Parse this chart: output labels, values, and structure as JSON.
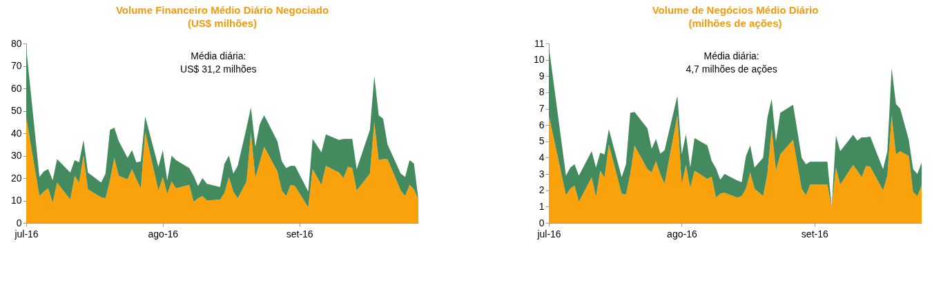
{
  "chart_data": [
    {
      "type": "area",
      "stacked": true,
      "title": "Volume Financeiro Médio Diário Negociado",
      "subtitle": "(US$ milhões)",
      "annotations": [
        "Média diária:",
        "US$ 31,2 milhões"
      ],
      "x": [
        "2016-07-01",
        "2016-07-04",
        "2016-07-05",
        "2016-07-06",
        "2016-07-07",
        "2016-07-08",
        "2016-07-11",
        "2016-07-12",
        "2016-07-13",
        "2016-07-14",
        "2016-07-15",
        "2016-07-18",
        "2016-07-19",
        "2016-07-20",
        "2016-07-21",
        "2016-07-22",
        "2016-07-24",
        "2016-07-25",
        "2016-07-26",
        "2016-07-27",
        "2016-07-28",
        "2016-07-31",
        "2016-08-01",
        "2016-08-02",
        "2016-08-03",
        "2016-08-04",
        "2016-08-07",
        "2016-08-08",
        "2016-08-09",
        "2016-08-10",
        "2016-08-11",
        "2016-08-14",
        "2016-08-15",
        "2016-08-16",
        "2016-08-17",
        "2016-08-18",
        "2016-08-20",
        "2016-08-21",
        "2016-08-22",
        "2016-08-23",
        "2016-08-24",
        "2016-08-27",
        "2016-08-28",
        "2016-08-29",
        "2016-08-30",
        "2016-08-31",
        "2016-09-03",
        "2016-09-04",
        "2016-09-06",
        "2016-09-07",
        "2016-09-10",
        "2016-09-11",
        "2016-09-12",
        "2016-09-13",
        "2016-09-14",
        "2016-09-17",
        "2016-09-18",
        "2016-09-19",
        "2016-09-20",
        "2016-09-21",
        "2016-09-24",
        "2016-09-25",
        "2016-09-26",
        "2016-09-27",
        "2016-09-28"
      ],
      "series": [
        {
          "color": "#f9a20b",
          "values": [
            47,
            12,
            14,
            15.5,
            9,
            18,
            10.5,
            21,
            18,
            30,
            15,
            11.5,
            11,
            19,
            29,
            21,
            19.5,
            24,
            19.5,
            15.5,
            40.5,
            14.5,
            20.5,
            13,
            18.5,
            15.5,
            17,
            9.5,
            11,
            12,
            10,
            10.5,
            13.5,
            20.5,
            14,
            11,
            18.5,
            40.5,
            20,
            27,
            34,
            23,
            14.5,
            12,
            17,
            16.5,
            7,
            24,
            17,
            25.5,
            22.5,
            20,
            25,
            24.5,
            14.5,
            22,
            45,
            28,
            28.5,
            28.5,
            14.5,
            12,
            17,
            15,
            10.5
          ]
        },
        {
          "color": "#438a5e",
          "values": [
            31,
            8.5,
            9,
            8.5,
            10,
            10.5,
            12,
            7,
            9,
            7,
            7.5,
            6.5,
            11,
            22.5,
            13.5,
            15.5,
            9.5,
            8.5,
            7.5,
            12,
            7,
            10.5,
            12,
            6,
            11.5,
            12.5,
            7.5,
            11.5,
            5.5,
            8,
            7.5,
            5.5,
            13,
            9.5,
            8,
            14.5,
            24,
            11,
            14,
            17,
            14,
            13.5,
            13,
            12.5,
            8.5,
            9,
            7,
            13.5,
            14.5,
            14,
            14.5,
            17.5,
            12.5,
            13,
            9.5,
            19.5,
            20.5,
            20,
            18,
            6.5,
            7.5,
            8.5,
            11,
            11.5,
            0
          ]
        }
      ],
      "xlim": [
        "2016-07-01",
        "2016-09-28"
      ],
      "xticks": [
        {
          "value": "2016-07-01",
          "label": "jul-16"
        },
        {
          "value": "2016-08-01",
          "label": "ago-16"
        },
        {
          "value": "2016-09-01",
          "label": "set-16"
        }
      ],
      "ylim": [
        0,
        80
      ],
      "yticks": [
        0,
        10,
        20,
        30,
        40,
        50,
        60,
        70,
        80
      ]
    },
    {
      "type": "area",
      "stacked": true,
      "title": "Volume de Negócios Médio Diário",
      "subtitle": "(milhões de ações)",
      "annotations": [
        "Média diária:",
        "4,7 milhões de ações"
      ],
      "x": [
        "2016-07-01",
        "2016-07-05",
        "2016-07-06",
        "2016-07-07",
        "2016-07-08",
        "2016-07-11",
        "2016-07-12",
        "2016-07-13",
        "2016-07-14",
        "2016-07-15",
        "2016-07-18",
        "2016-07-19",
        "2016-07-20",
        "2016-07-21",
        "2016-07-24",
        "2016-07-25",
        "2016-07-26",
        "2016-07-27",
        "2016-07-28",
        "2016-07-31",
        "2016-08-01",
        "2016-08-02",
        "2016-08-03",
        "2016-08-04",
        "2016-08-07",
        "2016-08-08",
        "2016-08-09",
        "2016-08-10",
        "2016-08-11",
        "2016-08-14",
        "2016-08-15",
        "2016-08-16",
        "2016-08-17",
        "2016-08-18",
        "2016-08-20",
        "2016-08-21",
        "2016-08-22",
        "2016-08-23",
        "2016-08-24",
        "2016-08-27",
        "2016-08-29",
        "2016-08-30",
        "2016-08-31",
        "2016-09-04",
        "2016-09-05",
        "2016-09-06",
        "2016-09-07",
        "2016-09-10",
        "2016-09-11",
        "2016-09-12",
        "2016-09-13",
        "2016-09-14",
        "2016-09-17",
        "2016-09-18",
        "2016-09-19",
        "2016-09-20",
        "2016-09-21",
        "2016-09-23",
        "2016-09-24",
        "2016-09-25",
        "2016-09-26"
      ],
      "series": [
        {
          "color": "#f9a20b",
          "values": [
            6.6,
            1.7,
            2.1,
            2.3,
            1.3,
            2.8,
            1.6,
            3.2,
            2.8,
            4.8,
            1.8,
            1.75,
            3.0,
            4.75,
            3.3,
            3.1,
            3.8,
            3.0,
            2.4,
            6.6,
            2.4,
            3.55,
            2.15,
            3.2,
            2.7,
            2.85,
            1.55,
            1.8,
            1.85,
            1.55,
            1.65,
            2.1,
            3.1,
            2.1,
            1.65,
            3.0,
            5.8,
            3.2,
            4.2,
            5.1,
            2.1,
            1.7,
            2.35,
            2.35,
            1.0,
            3.4,
            2.35,
            3.55,
            3.2,
            2.8,
            3.5,
            3.45,
            2.0,
            2.9,
            6.6,
            4.2,
            4.4,
            4.1,
            1.9,
            1.65,
            2.3
          ]
        },
        {
          "color": "#438a5e",
          "values": [
            4.2,
            1.2,
            1.3,
            1.3,
            1.6,
            1.6,
            1.8,
            1.1,
            1.4,
            0.95,
            1.0,
            1.85,
            3.75,
            2.05,
            2.5,
            1.45,
            1.35,
            1.25,
            2.05,
            1.2,
            1.8,
            1.9,
            1.25,
            2.0,
            2.05,
            0.95,
            1.8,
            0.85,
            1.15,
            1.05,
            0.85,
            2.0,
            1.65,
            1.3,
            2.35,
            3.45,
            1.8,
            1.8,
            2.55,
            2.15,
            1.9,
            1.9,
            1.4,
            1.4,
            0,
            1.95,
            2.05,
            1.85,
            1.85,
            2.45,
            1.75,
            1.85,
            1.3,
            1.5,
            2.9,
            3.1,
            2.6,
            1.0,
            1.4,
            1.35,
            1.4
          ]
        }
      ],
      "xlim": [
        "2016-07-01",
        "2016-09-26"
      ],
      "xticks": [
        {
          "value": "2016-07-01",
          "label": "jul-16"
        },
        {
          "value": "2016-08-01",
          "label": "ago-16"
        },
        {
          "value": "2016-09-01",
          "label": "set-16"
        }
      ],
      "ylim": [
        0,
        11
      ],
      "yticks": [
        0,
        1,
        2,
        3,
        4,
        5,
        6,
        7,
        8,
        9,
        10,
        11
      ]
    }
  ]
}
